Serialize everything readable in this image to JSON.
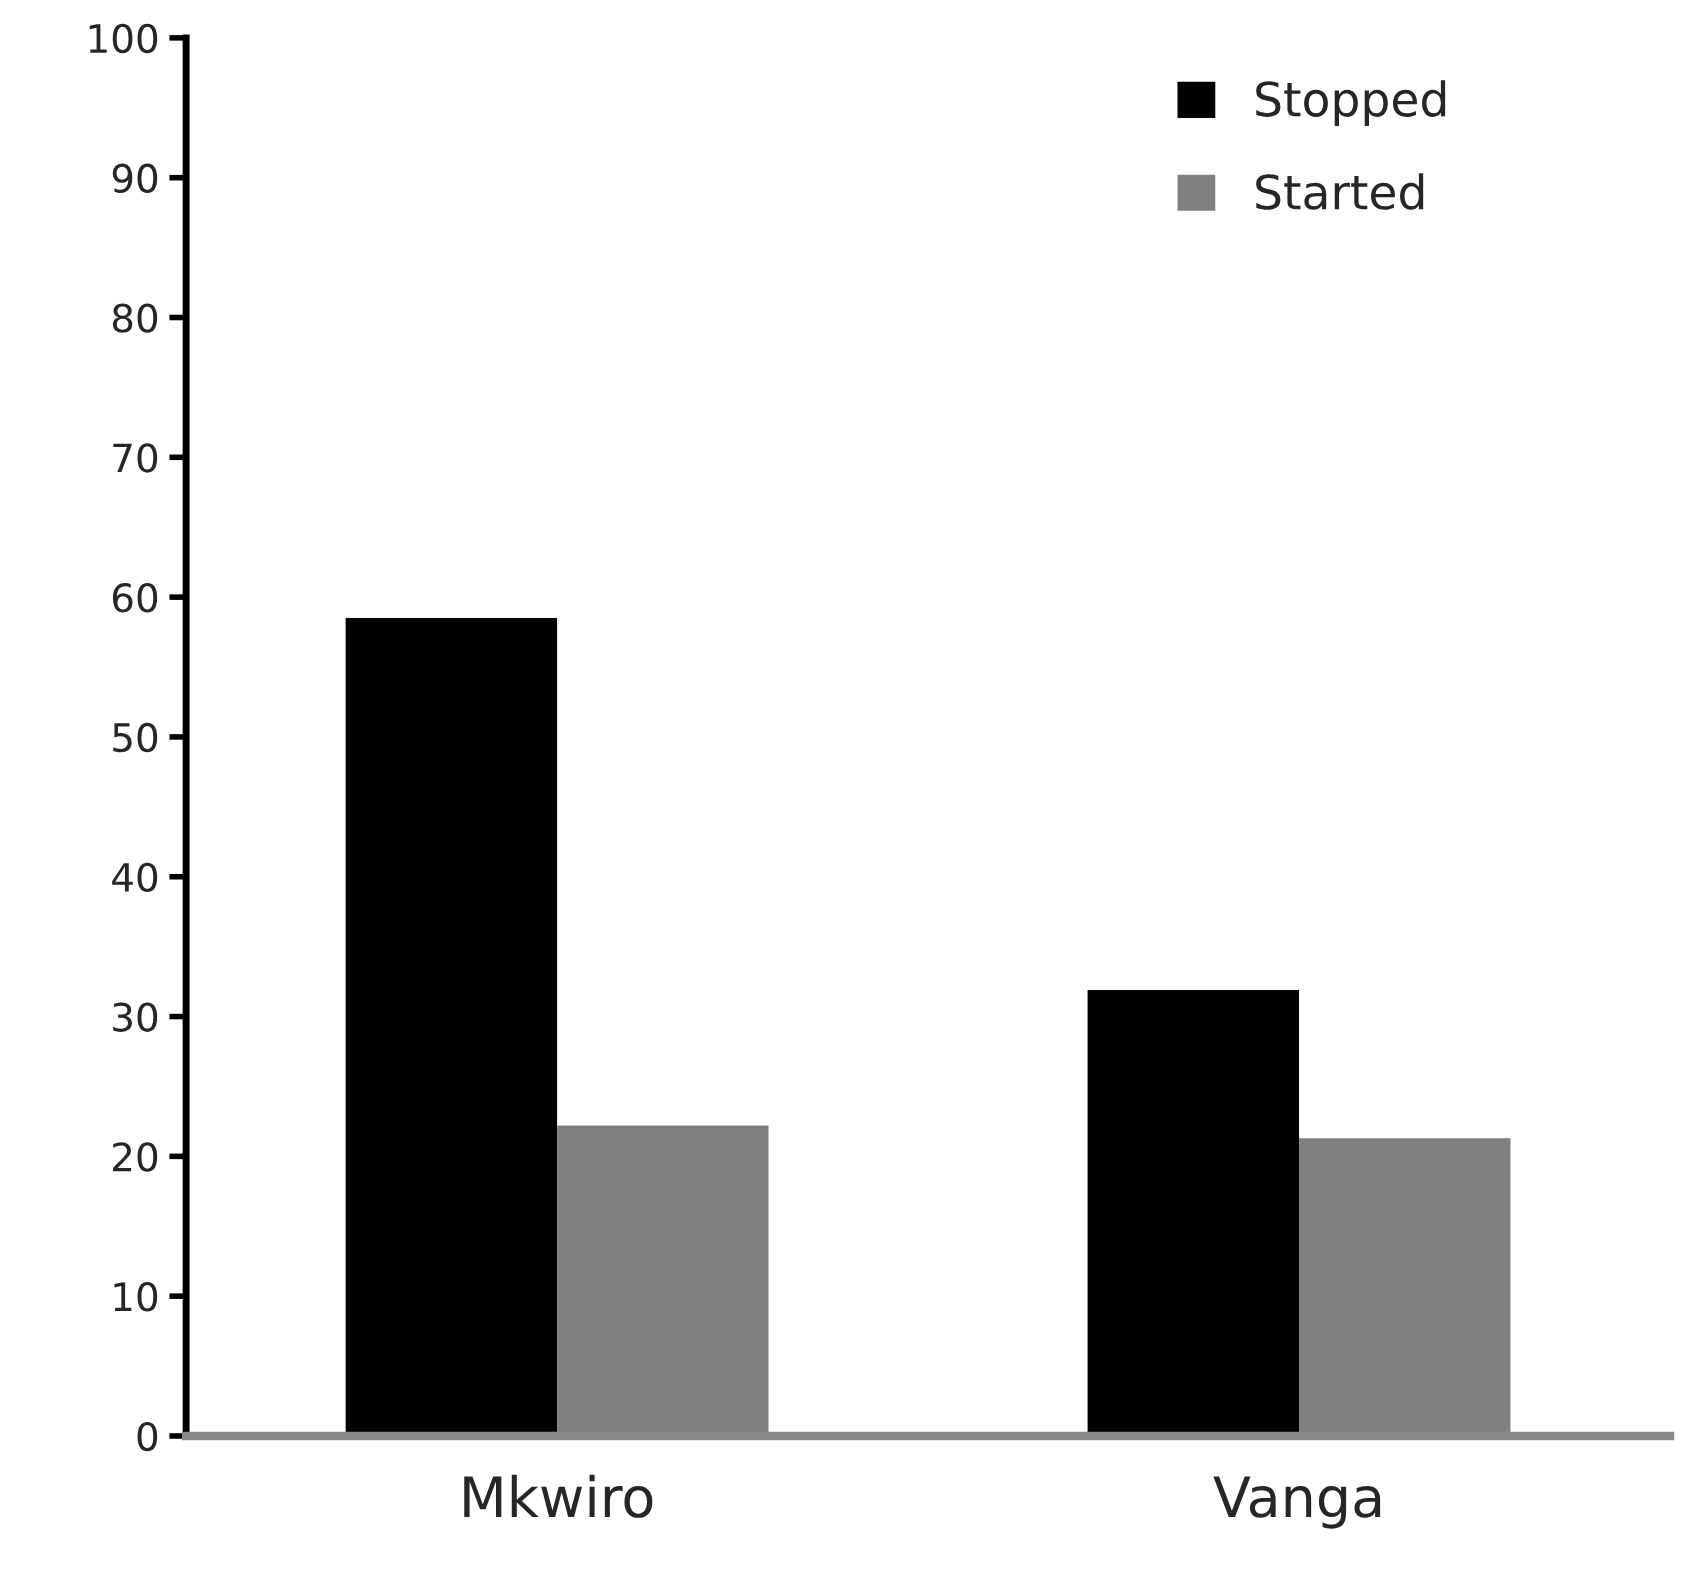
{
  "chart_data": {
    "type": "bar",
    "categories": [
      "Mkwiro",
      "Vanga"
    ],
    "series": [
      {
        "name": "Stopped",
        "color": "#000000",
        "values": [
          58.5,
          31.9
        ]
      },
      {
        "name": "Started",
        "color": "#808080",
        "values": [
          22.2,
          21.3
        ]
      }
    ],
    "ylim": [
      0,
      100
    ],
    "yticks": [
      0,
      10,
      20,
      30,
      40,
      50,
      60,
      70,
      80,
      90,
      100
    ],
    "grid": false,
    "legend": "top right"
  }
}
